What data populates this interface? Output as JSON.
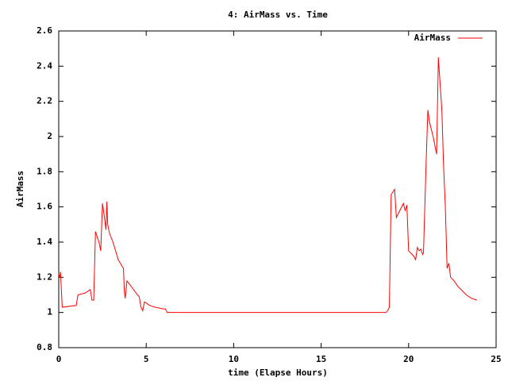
{
  "chart_data": {
    "type": "line",
    "title": "4: AirMass vs. Time",
    "x_label": "time (Elapse Hours)",
    "y_label": "AirMass",
    "x": [
      0,
      0.05,
      0.1,
      0.2,
      1.0,
      1.1,
      1.5,
      1.8,
      1.9,
      2.0,
      2.1,
      2.3,
      2.4,
      2.5,
      2.6,
      2.7,
      2.75,
      2.8,
      2.9,
      3.1,
      3.4,
      3.7,
      3.75,
      3.8,
      3.9,
      4.2,
      4.5,
      4.6,
      4.7,
      4.8,
      4.9,
      5.2,
      5.5,
      6.0,
      6.1,
      6.2,
      18.7,
      18.8,
      18.9,
      19.0,
      19.2,
      19.3,
      19.5,
      19.7,
      19.8,
      19.9,
      20.0,
      20.3,
      20.4,
      20.5,
      20.6,
      20.7,
      20.8,
      20.85,
      21.0,
      21.1,
      21.2,
      21.4,
      21.6,
      21.7,
      21.8,
      21.9,
      22.0,
      22.1,
      22.2,
      22.3,
      22.4,
      22.6,
      22.8,
      23.0,
      23.3,
      23.6,
      23.9
    ],
    "series": [
      {
        "name": "AirMass",
        "color": "#ff0000",
        "values": [
          1.22,
          1.2,
          1.23,
          1.03,
          1.04,
          1.1,
          1.11,
          1.13,
          1.07,
          1.07,
          1.46,
          1.4,
          1.35,
          1.62,
          1.55,
          1.47,
          1.63,
          1.5,
          1.45,
          1.4,
          1.3,
          1.25,
          1.12,
          1.08,
          1.18,
          1.14,
          1.1,
          1.09,
          1.03,
          1.01,
          1.06,
          1.04,
          1.03,
          1.02,
          1.02,
          1.0,
          1.0,
          1.01,
          1.03,
          1.67,
          1.7,
          1.54,
          1.58,
          1.62,
          1.58,
          1.61,
          1.35,
          1.32,
          1.3,
          1.37,
          1.35,
          1.36,
          1.33,
          1.34,
          1.85,
          2.15,
          2.08,
          2.0,
          1.9,
          2.45,
          2.3,
          2.15,
          1.83,
          1.6,
          1.25,
          1.28,
          1.2,
          1.18,
          1.15,
          1.13,
          1.1,
          1.08,
          1.07
        ]
      }
    ],
    "xlim": [
      0,
      25
    ],
    "xticks": [
      0,
      5,
      10,
      15,
      20,
      25
    ],
    "ylim": [
      0.8,
      2.6
    ],
    "yticks": [
      0.8,
      1,
      1.2,
      1.4,
      1.6,
      1.8,
      2,
      2.2,
      2.4,
      2.6
    ],
    "grid": false,
    "legend": "top-right"
  }
}
